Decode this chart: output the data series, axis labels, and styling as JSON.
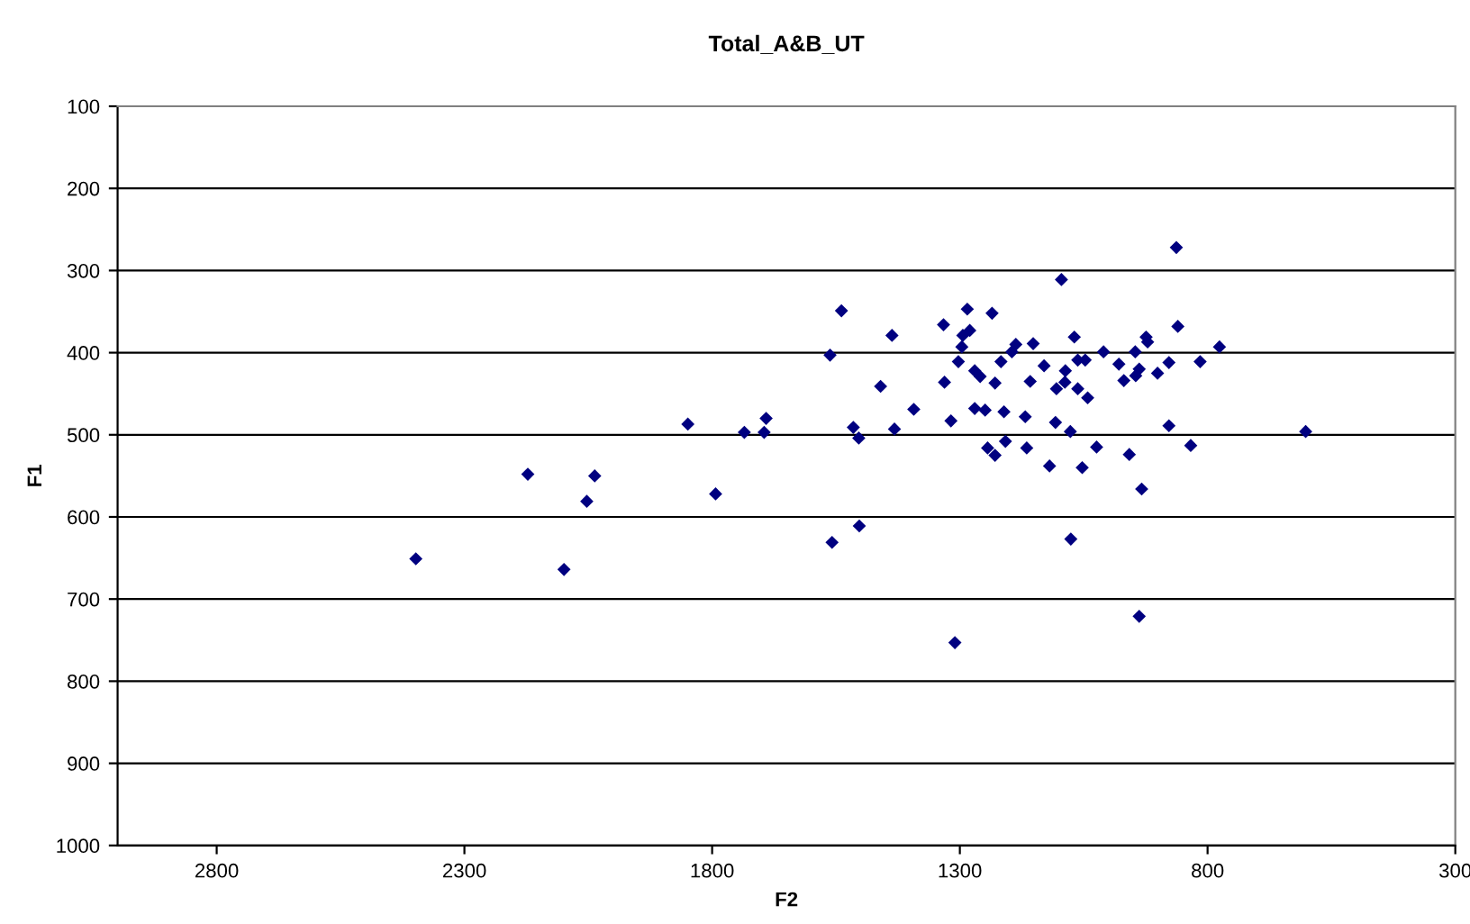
{
  "chart_data": {
    "type": "scatter",
    "title": "Total_A&B_UT",
    "xlabel": "F2",
    "ylabel": "F1",
    "xlim": [
      3000,
      300
    ],
    "xticks": [
      2800,
      2300,
      1800,
      1300,
      800,
      300
    ],
    "ylim": [
      1000,
      100
    ],
    "yticks": [
      100,
      200,
      300,
      400,
      500,
      600,
      700,
      800,
      900,
      1000
    ],
    "grid": "y",
    "marker": "diamond",
    "legend": false,
    "series": [
      {
        "color": "#000080",
        "x": [
          1849,
          1735,
          1695,
          1691,
          1515,
          1504,
          1432,
          2172,
          2037,
          2053,
          1793,
          2398,
          2099,
          1558,
          1503,
          863,
          1539,
          1095,
          1437,
          1333,
          1285,
          1235,
          1294,
          1280,
          1296,
          860,
          1562,
          1303,
          1270,
          1259,
          1217,
          1195,
          1187,
          1152,
          1069,
          924,
          921,
          1010,
          946,
          776,
          1130,
          1087,
          1062,
          1047,
          979,
          878,
          815,
          1331,
          1229,
          1158,
          1105,
          1088,
          1062,
          1042,
          969,
          945,
          938,
          901,
          1460,
          1393,
          1270,
          1249,
          1211,
          1168,
          1107,
          1077,
          878,
          1318,
          1208,
          1244,
          1229,
          1165,
          1024,
          958,
          834,
          1119,
          1053,
          933,
          1076,
          938,
          1310,
          602
        ],
        "values": [
          487,
          497,
          497,
          480,
          491,
          504,
          493,
          548,
          550,
          581,
          572,
          651,
          664,
          631,
          611,
          272,
          349,
          311,
          379,
          366,
          347,
          352,
          379,
          373,
          393,
          368,
          403,
          411,
          422,
          429,
          411,
          399,
          390,
          389,
          381,
          381,
          387,
          399,
          399,
          393,
          416,
          422,
          409,
          409,
          414,
          412,
          411,
          436,
          437,
          435,
          444,
          436,
          444,
          455,
          434,
          428,
          420,
          425,
          441,
          469,
          468,
          470,
          472,
          478,
          485,
          496,
          489,
          483,
          508,
          516,
          525,
          516,
          515,
          524,
          513,
          538,
          540,
          566,
          627,
          721,
          753,
          496
        ]
      }
    ]
  }
}
